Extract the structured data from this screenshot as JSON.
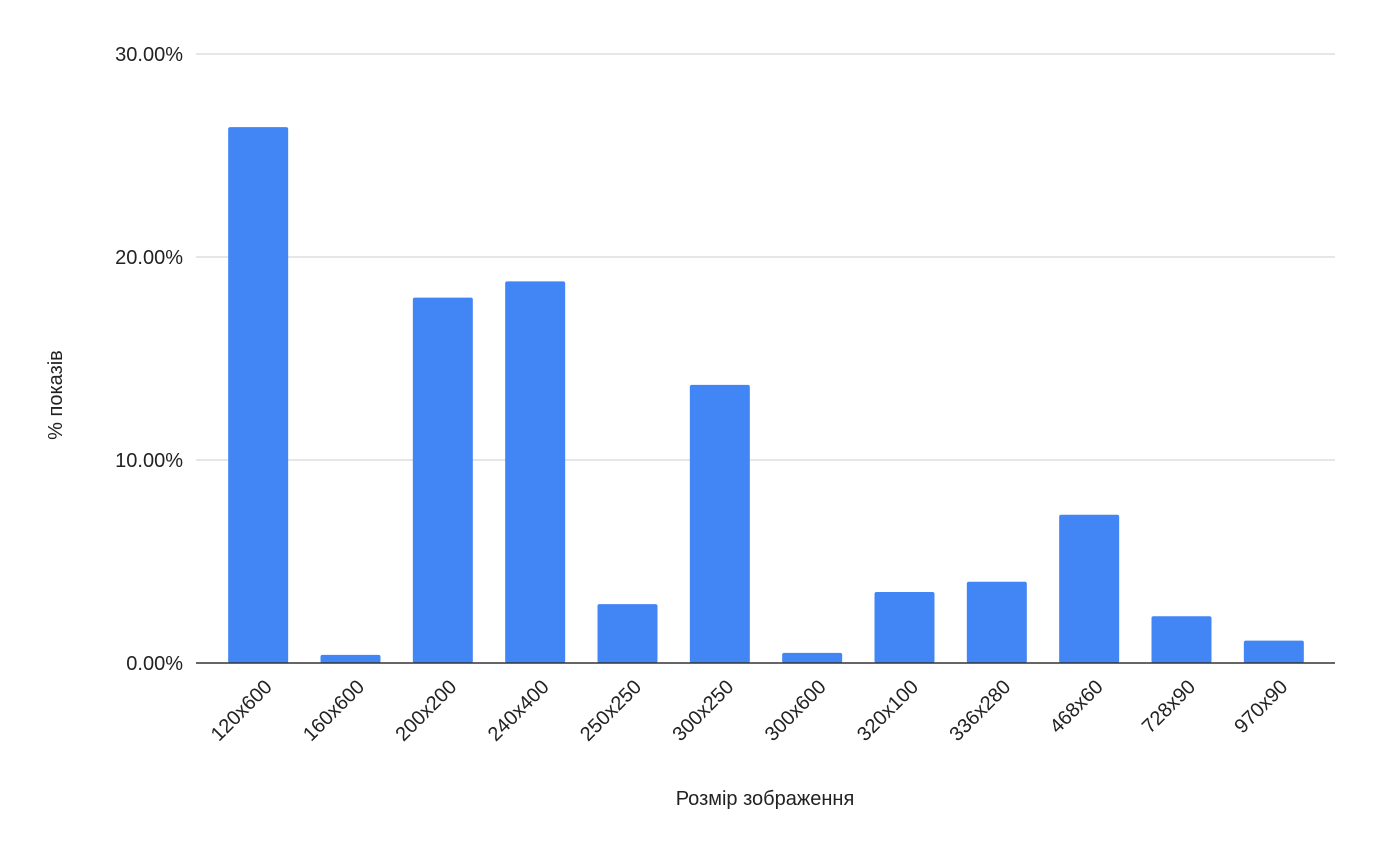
{
  "chart_data": {
    "type": "bar",
    "x_label": "Розмір зображення",
    "y_label": "% показів",
    "categories": [
      "120x600",
      "160x600",
      "200x200",
      "240x400",
      "250x250",
      "300x250",
      "300x600",
      "320x100",
      "336x280",
      "468x60",
      "728x90",
      "970x90"
    ],
    "values": [
      26.4,
      0.4,
      18.0,
      18.8,
      2.9,
      13.7,
      0.5,
      3.5,
      4.0,
      7.3,
      2.3,
      1.1
    ],
    "color": "#4285f4",
    "ylim": [
      0,
      30
    ],
    "yticks": [
      {
        "value": 0,
        "label": "0.00%"
      },
      {
        "value": 10,
        "label": "10.00%"
      },
      {
        "value": 20,
        "label": "20.00%"
      },
      {
        "value": 30,
        "label": "30.00%"
      }
    ],
    "grid": true
  }
}
